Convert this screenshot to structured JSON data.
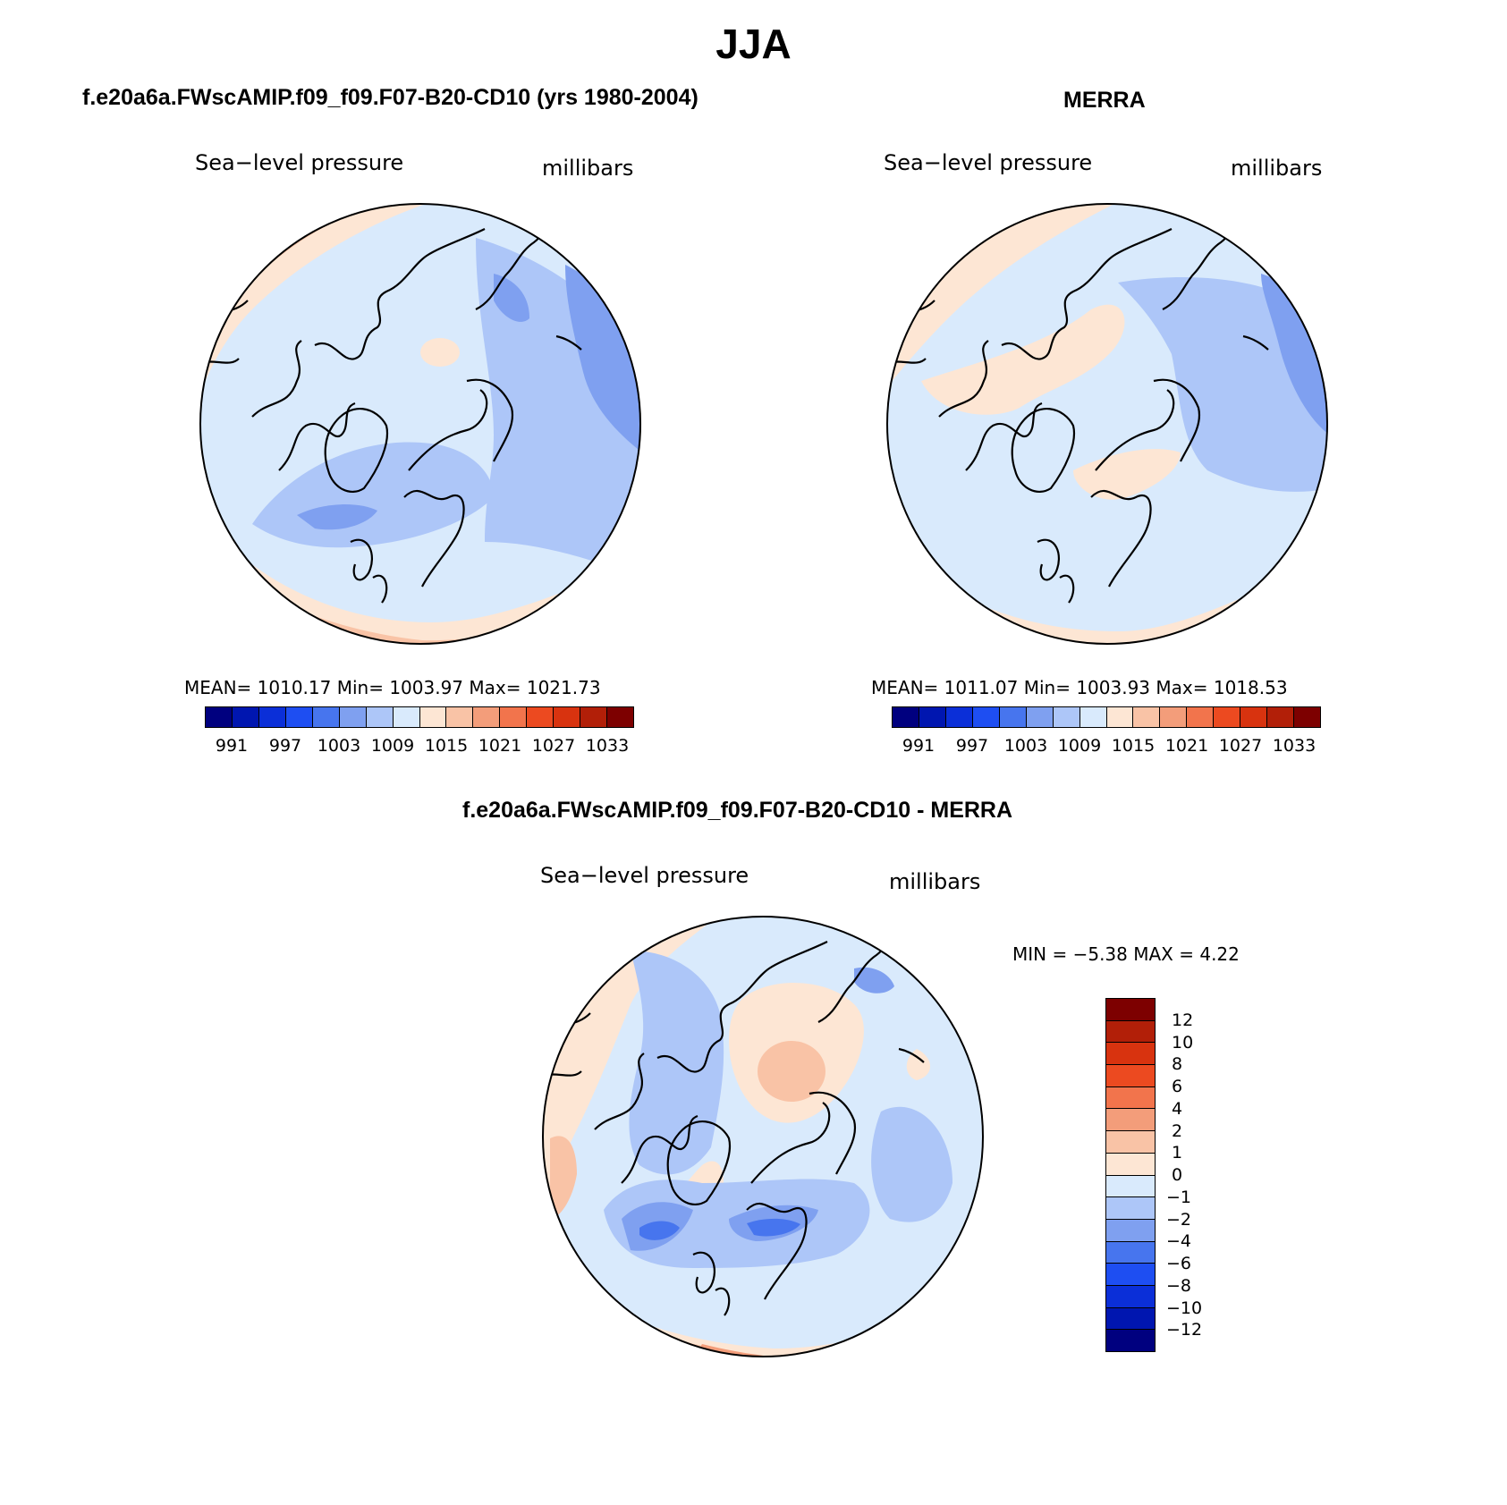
{
  "figure": {
    "title": "JJA"
  },
  "panels": {
    "model": {
      "title": "f.e20a6a.FWscAMIP.f09_f09.F07-B20-CD10 (yrs 1980-2004)",
      "left_label": "Sea−level pressure",
      "right_label": "millibars",
      "stats": "MEAN=  1010.17   Min=  1003.97   Max=  1021.73"
    },
    "obs": {
      "title": "MERRA",
      "left_label": "Sea−level pressure",
      "right_label": "millibars",
      "stats": "MEAN=  1011.07   Min=  1003.93   Max=  1018.53"
    },
    "diff": {
      "title": "f.e20a6a.FWscAMIP.f09_f09.F07-B20-CD10 - MERRA",
      "left_label": "Sea−level pressure",
      "right_label": "millibars",
      "stats": "MIN =   −5.38  MAX =    4.22"
    }
  },
  "colorbars": {
    "absolute": {
      "ticks": [
        "991",
        "997",
        "1003",
        "1009",
        "1015",
        "1021",
        "1027",
        "1033"
      ],
      "colors": [
        "#00007f",
        "#0016b0",
        "#0b2fd8",
        "#1e4ef2",
        "#4775ee",
        "#7fa0f0",
        "#adc6f8",
        "#d9eafc",
        "#fde6d4",
        "#f9c3a6",
        "#f39d7a",
        "#f2744c",
        "#ec4a20",
        "#d8330f",
        "#b21f08",
        "#7d0000"
      ]
    },
    "difference": {
      "ticks": [
        "12",
        "10",
        "8",
        "6",
        "4",
        "2",
        "1",
        "0",
        "−1",
        "−2",
        "−4",
        "−6",
        "−8",
        "−10",
        "−12"
      ],
      "colors": [
        "#7d0000",
        "#b21f08",
        "#d8330f",
        "#ec4a20",
        "#f2744c",
        "#f39d7a",
        "#f9c3a6",
        "#fde6d4",
        "#d9eafc",
        "#adc6f8",
        "#7fa0f0",
        "#4775ee",
        "#1e4ef2",
        "#0b2fd8",
        "#0016b0",
        "#00007f"
      ]
    }
  },
  "map_colors": {
    "base_model": "#d9eafc",
    "base_obs": "#d9eafc",
    "base_diff": "#d9eafc",
    "coast": "#000000"
  }
}
